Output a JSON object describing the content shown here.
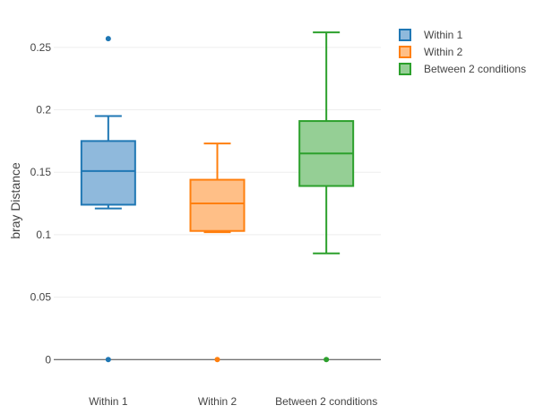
{
  "chart_data": {
    "type": "box",
    "ylabel": "bray Distance",
    "xlabel": "",
    "ylim": [
      -0.012,
      0.275
    ],
    "yticks": [
      0,
      0.05,
      0.1,
      0.15,
      0.2,
      0.25
    ],
    "ytick_labels": [
      "0",
      "0.05",
      "0.1",
      "0.15",
      "0.2",
      "0.25"
    ],
    "grid": true,
    "legend_position": "top-right",
    "categories": [
      "Within 1",
      "Within 2",
      "Between 2 conditions"
    ],
    "series": [
      {
        "name": "Within 1",
        "color": "#1f77b4",
        "fill": "#8fb9dc",
        "q1": 0.124,
        "median": 0.151,
        "q3": 0.175,
        "lower_whisker": 0.121,
        "upper_whisker": 0.195,
        "outliers": [
          0.257,
          0
        ]
      },
      {
        "name": "Within 2",
        "color": "#ff7f0e",
        "fill": "#ffbf87",
        "q1": 0.103,
        "median": 0.125,
        "q3": 0.144,
        "lower_whisker": 0.102,
        "upper_whisker": 0.173,
        "outliers": [
          0
        ]
      },
      {
        "name": "Between 2 conditions",
        "color": "#2ca02c",
        "fill": "#95cf95",
        "q1": 0.139,
        "median": 0.165,
        "q3": 0.191,
        "lower_whisker": 0.085,
        "upper_whisker": 0.262,
        "outliers": [
          0
        ]
      }
    ]
  }
}
